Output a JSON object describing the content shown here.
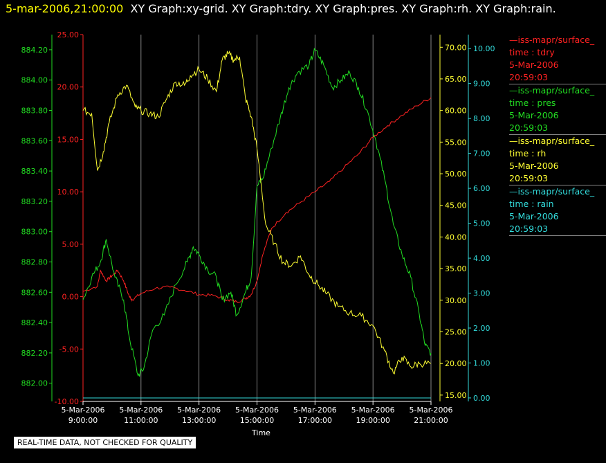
{
  "header": {
    "timestamp": "5-mar-2006,21:00:00",
    "titles": "XY Graph:xy-grid.  XY Graph:tdry.  XY Graph:pres.  XY Graph:rh.  XY Graph:rain."
  },
  "footer": {
    "label": "REAL-TIME DATA, NOT CHECKED FOR QUALITY"
  },
  "colors": {
    "tdry": "#ff2222",
    "pres": "#22dd22",
    "rh": "#ffff33",
    "rain": "#33dddd",
    "grid": "#aaaaaa",
    "axis": "#ffffff"
  },
  "legend": [
    {
      "series": "tdry",
      "lines": [
        "—iss-mapr/surface_",
        "time : tdry",
        "5-Mar-2006",
        "20:59:03"
      ]
    },
    {
      "series": "pres",
      "lines": [
        "—iss-mapr/surface_",
        "time : pres",
        "5-Mar-2006",
        "20:59:03"
      ]
    },
    {
      "series": "rh",
      "lines": [
        "—iss-mapr/surface_",
        "time : rh",
        "5-Mar-2006",
        "20:59:03"
      ]
    },
    {
      "series": "rain",
      "lines": [
        "—iss-mapr/surface_",
        "time : rain",
        "5-Mar-2006",
        "20:59:03"
      ]
    }
  ],
  "chart_data": {
    "type": "line",
    "xlabel": "Time",
    "xlim": [
      9,
      21
    ],
    "x_ticks": [
      {
        "value": 9,
        "label1": "5-Mar-2006",
        "label2": "9:00:00"
      },
      {
        "value": 11,
        "label1": "5-Mar-2006",
        "label2": "11:00:00"
      },
      {
        "value": 13,
        "label1": "5-Mar-2006",
        "label2": "13:00:00"
      },
      {
        "value": 15,
        "label1": "5-Mar-2006",
        "label2": "15:00:00"
      },
      {
        "value": 17,
        "label1": "5-Mar-2006",
        "label2": "17:00:00"
      },
      {
        "value": 19,
        "label1": "5-Mar-2006",
        "label2": "19:00:00"
      },
      {
        "value": 21,
        "label1": "5-Mar-2006",
        "label2": "21:00:00"
      }
    ],
    "grid": true,
    "axes": {
      "pres": {
        "side": "left-outer",
        "min": 881.88,
        "max": 884.3,
        "ticks": [
          "882.00",
          "882.20",
          "882.40",
          "882.60",
          "882.80",
          "883.00",
          "883.20",
          "883.40",
          "883.60",
          "883.80",
          "884.00",
          "884.20"
        ]
      },
      "tdry": {
        "side": "left-inner",
        "min": -10,
        "max": 25,
        "ticks": [
          "-10.00",
          "-5.00",
          "0.00",
          "5.00",
          "10.00",
          "15.00",
          "20.00",
          "25.00"
        ]
      },
      "rh": {
        "side": "right-inner",
        "min": 14,
        "max": 72,
        "ticks": [
          "15.00",
          "20.00",
          "25.00",
          "30.00",
          "35.00",
          "40.00",
          "45.00",
          "50.00",
          "55.00",
          "60.00",
          "65.00",
          "70.00"
        ]
      },
      "rain": {
        "side": "right-outer",
        "min": -0.1,
        "max": 10.4,
        "ticks": [
          "0.00",
          "1.00",
          "2.00",
          "3.00",
          "4.00",
          "5.00",
          "6.00",
          "7.00",
          "8.00",
          "9.00",
          "10.00"
        ]
      }
    },
    "series": [
      {
        "name": "tdry",
        "axis": "tdry",
        "x": [
          9.0,
          9.5,
          9.6,
          9.8,
          10.0,
          10.2,
          10.4,
          10.6,
          10.7,
          11.0,
          11.5,
          12.0,
          12.5,
          13.0,
          13.5,
          14.0,
          14.3,
          14.6,
          14.8,
          15.0,
          15.2,
          15.5,
          16.0,
          16.5,
          17.0,
          17.5,
          18.0,
          18.5,
          19.0,
          19.5,
          20.0,
          20.5,
          21.0
        ],
        "values": [
          0.5,
          1.0,
          2.5,
          1.5,
          2.0,
          2.5,
          1.5,
          0.0,
          -0.3,
          0.3,
          0.8,
          0.9,
          0.6,
          0.2,
          0.1,
          -0.3,
          -0.5,
          -0.2,
          0.2,
          1.5,
          4.0,
          6.5,
          8.0,
          9.0,
          10.0,
          11.0,
          12.3,
          13.6,
          15.2,
          16.3,
          17.3,
          18.2,
          19.0
        ]
      },
      {
        "name": "pres",
        "axis": "pres",
        "x": [
          9.0,
          9.3,
          9.6,
          9.8,
          10.1,
          10.4,
          10.6,
          10.9,
          11.1,
          11.4,
          11.8,
          12.2,
          12.6,
          12.8,
          13.0,
          13.3,
          13.6,
          13.8,
          14.1,
          14.3,
          14.6,
          14.8,
          15.0,
          15.2,
          15.5,
          15.8,
          16.1,
          16.4,
          16.8,
          17.0,
          17.3,
          17.6,
          17.9,
          18.2,
          18.5,
          18.8,
          19.1,
          19.4,
          19.7,
          20.0,
          20.3,
          20.6,
          20.8,
          21.0
        ],
        "values": [
          882.55,
          882.7,
          882.8,
          882.95,
          882.7,
          882.55,
          882.3,
          882.05,
          882.1,
          882.35,
          882.45,
          882.65,
          882.8,
          882.9,
          882.85,
          882.75,
          882.7,
          882.55,
          882.6,
          882.45,
          882.6,
          882.7,
          883.3,
          883.35,
          883.55,
          883.75,
          883.95,
          884.05,
          884.1,
          884.2,
          884.1,
          883.95,
          884.0,
          884.05,
          883.95,
          883.8,
          883.6,
          883.35,
          883.05,
          882.85,
          882.7,
          882.45,
          882.25,
          882.2
        ]
      },
      {
        "name": "rh",
        "axis": "rh",
        "x": [
          9.0,
          9.3,
          9.5,
          9.7,
          9.9,
          10.2,
          10.5,
          10.8,
          11.0,
          11.3,
          11.6,
          11.9,
          12.2,
          12.5,
          12.7,
          13.0,
          13.3,
          13.6,
          13.8,
          14.0,
          14.2,
          14.4,
          14.6,
          14.8,
          15.0,
          15.3,
          15.6,
          15.9,
          16.2,
          16.5,
          16.8,
          17.1,
          17.4,
          17.8,
          18.2,
          18.6,
          19.0,
          19.4,
          19.7,
          20.0,
          20.3,
          20.6,
          21.0
        ],
        "values": [
          60.0,
          59.5,
          50.5,
          53.5,
          58.0,
          62.5,
          64.0,
          60.5,
          60.0,
          59.5,
          59.0,
          62.0,
          64.5,
          64.0,
          65.5,
          66.5,
          65.0,
          63.0,
          68.0,
          69.0,
          68.0,
          68.5,
          62.0,
          59.0,
          54.0,
          42.0,
          39.0,
          36.0,
          35.5,
          37.0,
          34.0,
          32.5,
          31.0,
          29.0,
          28.0,
          27.5,
          26.0,
          22.0,
          18.5,
          21.0,
          19.5,
          20.0,
          20.0
        ]
      },
      {
        "name": "rain",
        "axis": "rain",
        "x": [
          9.0,
          21.0
        ],
        "values": [
          0.0,
          0.0
        ]
      }
    ]
  }
}
